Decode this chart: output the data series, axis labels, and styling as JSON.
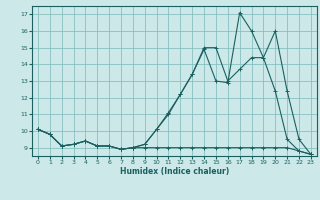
{
  "xlabel": "Humidex (Indice chaleur)",
  "ylabel": "",
  "bg_color": "#cce8e8",
  "grid_color": "#88c0c0",
  "line_color": "#1a6060",
  "xlim": [
    -0.5,
    23.5
  ],
  "ylim": [
    8.5,
    17.5
  ],
  "xticks": [
    0,
    1,
    2,
    3,
    4,
    5,
    6,
    7,
    8,
    9,
    10,
    11,
    12,
    13,
    14,
    15,
    16,
    17,
    18,
    19,
    20,
    21,
    22,
    23
  ],
  "yticks": [
    9,
    10,
    11,
    12,
    13,
    14,
    15,
    16,
    17
  ],
  "line1_x": [
    0,
    1,
    2,
    3,
    4,
    5,
    6,
    7,
    8,
    9,
    10,
    11,
    12,
    13,
    14,
    15,
    16,
    17,
    18,
    19,
    20,
    21,
    22,
    23
  ],
  "line1_y": [
    10.1,
    9.8,
    9.1,
    9.2,
    9.4,
    9.1,
    9.1,
    8.9,
    9.0,
    9.0,
    9.0,
    9.0,
    9.0,
    9.0,
    9.0,
    9.0,
    9.0,
    9.0,
    9.0,
    9.0,
    9.0,
    9.0,
    8.8,
    8.6
  ],
  "line2_x": [
    0,
    1,
    2,
    3,
    4,
    5,
    6,
    7,
    8,
    9,
    10,
    11,
    12,
    13,
    14,
    15,
    16,
    17,
    18,
    19,
    20,
    21,
    22,
    23
  ],
  "line2_y": [
    10.1,
    9.8,
    9.1,
    9.2,
    9.4,
    9.1,
    9.1,
    8.9,
    9.0,
    9.2,
    10.1,
    11.0,
    12.2,
    13.4,
    14.9,
    13.0,
    12.9,
    17.1,
    16.0,
    14.4,
    12.4,
    9.5,
    8.8,
    8.6
  ],
  "line3_x": [
    0,
    1,
    2,
    3,
    4,
    5,
    6,
    7,
    8,
    9,
    10,
    11,
    12,
    13,
    14,
    15,
    16,
    17,
    18,
    19,
    20,
    21,
    22,
    23
  ],
  "line3_y": [
    10.1,
    9.8,
    9.1,
    9.2,
    9.4,
    9.1,
    9.1,
    8.9,
    9.0,
    9.2,
    10.1,
    11.1,
    12.2,
    13.4,
    15.0,
    15.0,
    13.0,
    13.7,
    14.4,
    14.4,
    16.0,
    12.4,
    9.5,
    8.6
  ]
}
